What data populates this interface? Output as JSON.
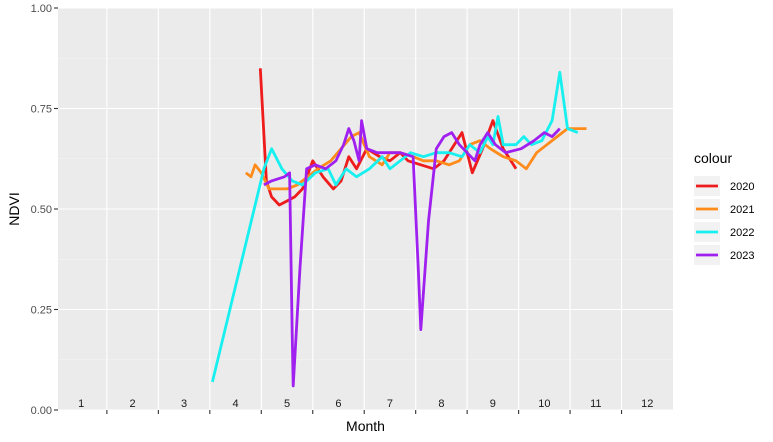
{
  "chart_data": {
    "type": "line",
    "xlabel": "Month",
    "ylabel": "NDVI",
    "xlim": [
      0.55,
      12.5
    ],
    "ylim": [
      0,
      1
    ],
    "y_ticks": [
      0.0,
      0.25,
      0.5,
      0.75,
      1.0
    ],
    "y_tick_labels": [
      "0.00",
      "0.25",
      "0.50",
      "0.75",
      "1.00"
    ],
    "x_tick_labels": [
      "1",
      "2",
      "3",
      "4",
      "5",
      "6",
      "7",
      "8",
      "9",
      "10",
      "11",
      "12"
    ],
    "panel_background": "#ebebeb",
    "grid": true,
    "legend": {
      "title": "colour",
      "position": "right"
    },
    "series": [
      {
        "name": "2020",
        "color": "#ee1c1c",
        "points": [
          [
            4.48,
            0.85
          ],
          [
            4.6,
            0.57
          ],
          [
            4.7,
            0.53
          ],
          [
            4.85,
            0.51
          ],
          [
            5.0,
            0.52
          ],
          [
            5.15,
            0.53
          ],
          [
            5.3,
            0.55
          ],
          [
            5.5,
            0.62
          ],
          [
            5.7,
            0.58
          ],
          [
            5.9,
            0.55
          ],
          [
            6.05,
            0.57
          ],
          [
            6.2,
            0.63
          ],
          [
            6.35,
            0.6
          ],
          [
            6.55,
            0.65
          ],
          [
            6.8,
            0.63
          ],
          [
            7.0,
            0.62
          ],
          [
            7.2,
            0.64
          ],
          [
            7.35,
            0.62
          ],
          [
            7.6,
            0.61
          ],
          [
            7.85,
            0.6
          ],
          [
            8.05,
            0.62
          ],
          [
            8.2,
            0.65
          ],
          [
            8.4,
            0.69
          ],
          [
            8.6,
            0.59
          ],
          [
            8.8,
            0.65
          ],
          [
            9.0,
            0.72
          ],
          [
            9.2,
            0.65
          ],
          [
            9.45,
            0.6
          ]
        ]
      },
      {
        "name": "2021",
        "color": "#ff8c1a",
        "points": [
          [
            4.2,
            0.59
          ],
          [
            4.3,
            0.58
          ],
          [
            4.38,
            0.61
          ],
          [
            4.5,
            0.59
          ],
          [
            4.65,
            0.55
          ],
          [
            4.8,
            0.55
          ],
          [
            5.0,
            0.55
          ],
          [
            5.2,
            0.56
          ],
          [
            5.4,
            0.58
          ],
          [
            5.6,
            0.6
          ],
          [
            5.85,
            0.62
          ],
          [
            6.05,
            0.65
          ],
          [
            6.25,
            0.68
          ],
          [
            6.4,
            0.69
          ],
          [
            6.6,
            0.63
          ],
          [
            6.85,
            0.61
          ],
          [
            7.0,
            0.64
          ],
          [
            7.2,
            0.64
          ],
          [
            7.45,
            0.63
          ],
          [
            7.65,
            0.62
          ],
          [
            7.9,
            0.62
          ],
          [
            8.15,
            0.61
          ],
          [
            8.35,
            0.62
          ],
          [
            8.55,
            0.66
          ],
          [
            8.75,
            0.67
          ],
          [
            8.95,
            0.65
          ],
          [
            9.2,
            0.63
          ],
          [
            9.45,
            0.62
          ],
          [
            9.65,
            0.6
          ],
          [
            9.85,
            0.64
          ],
          [
            10.05,
            0.66
          ],
          [
            10.25,
            0.68
          ],
          [
            10.45,
            0.7
          ],
          [
            10.65,
            0.7
          ],
          [
            10.82,
            0.7
          ]
        ]
      },
      {
        "name": "2022",
        "color": "#18f0f0",
        "points": [
          [
            3.55,
            0.07
          ],
          [
            4.55,
            0.6
          ],
          [
            4.7,
            0.65
          ],
          [
            4.9,
            0.6
          ],
          [
            5.1,
            0.57
          ],
          [
            5.3,
            0.56
          ],
          [
            5.55,
            0.59
          ],
          [
            5.8,
            0.6
          ],
          [
            5.95,
            0.56
          ],
          [
            6.15,
            0.6
          ],
          [
            6.35,
            0.58
          ],
          [
            6.6,
            0.6
          ],
          [
            6.85,
            0.63
          ],
          [
            7.0,
            0.6
          ],
          [
            7.2,
            0.62
          ],
          [
            7.4,
            0.64
          ],
          [
            7.65,
            0.63
          ],
          [
            7.9,
            0.64
          ],
          [
            8.15,
            0.64
          ],
          [
            8.4,
            0.63
          ],
          [
            8.55,
            0.66
          ],
          [
            8.75,
            0.64
          ],
          [
            8.9,
            0.68
          ],
          [
            9.0,
            0.66
          ],
          [
            9.1,
            0.73
          ],
          [
            9.2,
            0.66
          ],
          [
            9.45,
            0.66
          ],
          [
            9.6,
            0.68
          ],
          [
            9.75,
            0.66
          ],
          [
            9.95,
            0.67
          ],
          [
            10.15,
            0.72
          ],
          [
            10.3,
            0.84
          ],
          [
            10.45,
            0.7
          ],
          [
            10.65,
            0.69
          ]
        ]
      },
      {
        "name": "2023",
        "color": "#a020f0",
        "points": [
          [
            4.55,
            0.56
          ],
          [
            4.7,
            0.57
          ],
          [
            4.95,
            0.58
          ],
          [
            5.05,
            0.59
          ],
          [
            5.1,
            0.19
          ],
          [
            5.12,
            0.06
          ],
          [
            5.25,
            0.35
          ],
          [
            5.38,
            0.6
          ],
          [
            5.55,
            0.61
          ],
          [
            5.75,
            0.6
          ],
          [
            5.95,
            0.62
          ],
          [
            6.1,
            0.66
          ],
          [
            6.2,
            0.7
          ],
          [
            6.3,
            0.67
          ],
          [
            6.4,
            0.62
          ],
          [
            6.45,
            0.72
          ],
          [
            6.55,
            0.65
          ],
          [
            6.75,
            0.64
          ],
          [
            6.95,
            0.64
          ],
          [
            7.2,
            0.64
          ],
          [
            7.45,
            0.63
          ],
          [
            7.55,
            0.35
          ],
          [
            7.6,
            0.2
          ],
          [
            7.75,
            0.47
          ],
          [
            7.9,
            0.65
          ],
          [
            8.05,
            0.68
          ],
          [
            8.2,
            0.69
          ],
          [
            8.35,
            0.66
          ],
          [
            8.5,
            0.64
          ],
          [
            8.65,
            0.62
          ],
          [
            8.75,
            0.66
          ],
          [
            8.9,
            0.69
          ],
          [
            9.05,
            0.66
          ],
          [
            9.25,
            0.64
          ],
          [
            9.55,
            0.65
          ],
          [
            9.8,
            0.67
          ],
          [
            10.0,
            0.69
          ],
          [
            10.15,
            0.68
          ],
          [
            10.3,
            0.7
          ]
        ]
      }
    ]
  }
}
